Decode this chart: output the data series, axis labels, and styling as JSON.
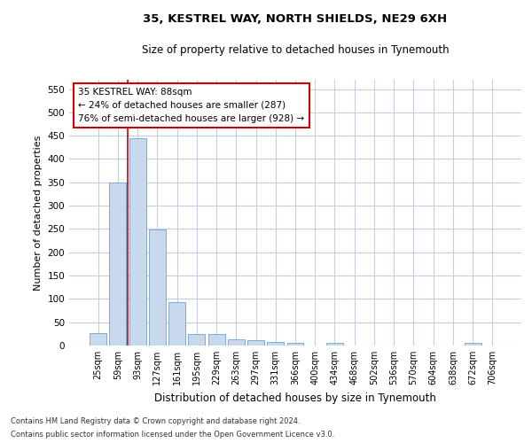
{
  "title": "35, KESTREL WAY, NORTH SHIELDS, NE29 6XH",
  "subtitle": "Size of property relative to detached houses in Tynemouth",
  "xlabel": "Distribution of detached houses by size in Tynemouth",
  "ylabel": "Number of detached properties",
  "bar_color": "#c8d8ed",
  "bar_edge_color": "#7aadd4",
  "highlight_color": "#cc0000",
  "background_color": "#ffffff",
  "grid_color": "#c8cce0",
  "categories": [
    "25sqm",
    "59sqm",
    "93sqm",
    "127sqm",
    "161sqm",
    "195sqm",
    "229sqm",
    "263sqm",
    "297sqm",
    "331sqm",
    "366sqm",
    "400sqm",
    "434sqm",
    "468sqm",
    "502sqm",
    "536sqm",
    "570sqm",
    "604sqm",
    "638sqm",
    "672sqm",
    "706sqm"
  ],
  "values": [
    27,
    350,
    445,
    248,
    93,
    24,
    24,
    13,
    11,
    7,
    6,
    0,
    5,
    0,
    0,
    0,
    0,
    0,
    0,
    5,
    0
  ],
  "redline_x": 1.5,
  "annotation_text": "35 KESTREL WAY: 88sqm\n← 24% of detached houses are smaller (287)\n76% of semi-detached houses are larger (928) →",
  "ylim": [
    0,
    570
  ],
  "yticks": [
    0,
    50,
    100,
    150,
    200,
    250,
    300,
    350,
    400,
    450,
    500,
    550
  ],
  "footnote1": "Contains HM Land Registry data © Crown copyright and database right 2024.",
  "footnote2": "Contains public sector information licensed under the Open Government Licence v3.0."
}
